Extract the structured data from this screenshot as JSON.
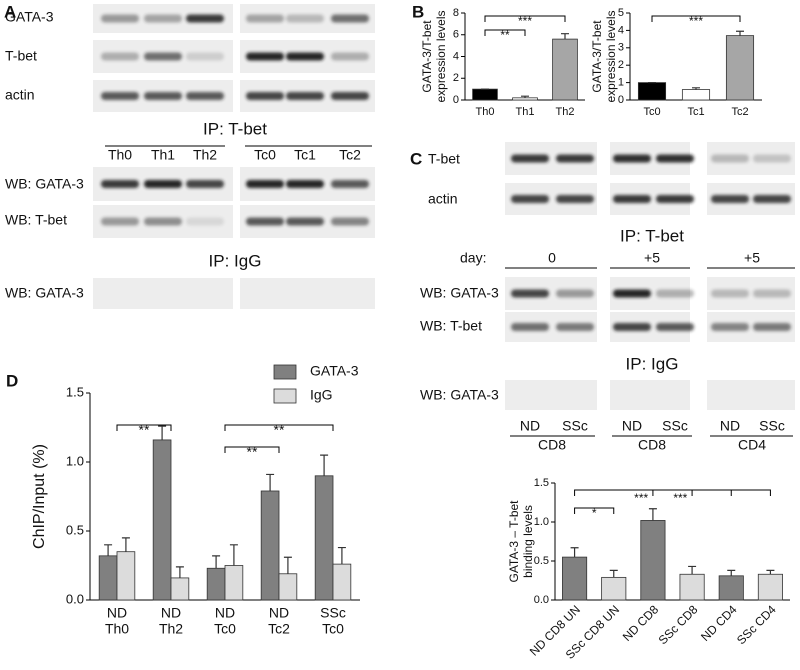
{
  "panel_labels": [
    "A",
    "B",
    "C",
    "D"
  ],
  "blot_a": {
    "rows": [
      "GATA-3",
      "T-bet",
      "actin"
    ],
    "ip_tbet": "IP: T-bet",
    "lanes": [
      "Th0",
      "Th1",
      "Th2",
      "Tc0",
      "Tc1",
      "Tc2"
    ],
    "wb_rows": [
      "WB: GATA-3",
      "WB: T-bet"
    ],
    "ip_igg": "IP: IgG",
    "igg_row": "WB: GATA-3"
  },
  "blot_c": {
    "rows": [
      "T-bet",
      "actin"
    ],
    "ip_tbet": "IP: T-bet",
    "day_label": "day:",
    "days": [
      "0",
      "+5",
      "+5"
    ],
    "wb_rows": [
      "WB: GATA-3",
      "WB: T-bet"
    ],
    "ip_igg": "IP: IgG",
    "igg_row": "WB: GATA-3",
    "lanes": [
      "ND",
      "SSc",
      "ND",
      "SSc",
      "ND",
      "SSc"
    ],
    "groups": [
      "CD8",
      "CD8",
      "CD4"
    ]
  },
  "chart_data": [
    {
      "type": "bar",
      "y_label": [
        "GATA-3/T-bet",
        "expression levels"
      ],
      "categories": [
        "Th0",
        "Th1",
        "Th2"
      ],
      "values": [
        1.0,
        0.2,
        5.6
      ],
      "errors": [
        0,
        0.15,
        0.5
      ],
      "colors": [
        "#000000",
        "#ffffff",
        "#a6a6a6"
      ],
      "ylim": [
        0,
        8
      ],
      "yticks": [
        0,
        2,
        4,
        6,
        8
      ],
      "annotations": [
        "**",
        "***"
      ]
    },
    {
      "type": "bar",
      "y_label": [
        "GATA-3/T-bet",
        "expression levels"
      ],
      "categories": [
        "Tc0",
        "Tc1",
        "Tc2"
      ],
      "values": [
        1.0,
        0.6,
        3.7
      ],
      "errors": [
        0,
        0.1,
        0.25
      ],
      "colors": [
        "#000000",
        "#ffffff",
        "#a6a6a6"
      ],
      "ylim": [
        0,
        5
      ],
      "yticks": [
        0,
        1,
        2,
        3,
        4,
        5
      ],
      "annotations": [
        "***"
      ]
    },
    {
      "type": "grouped-bar",
      "y_label": "ChIP/Input (%)",
      "categories": [
        [
          "ND",
          "Th0"
        ],
        [
          "ND",
          "Th2"
        ],
        [
          "ND",
          "Tc0"
        ],
        [
          "ND",
          "Tc2"
        ],
        [
          "SSc",
          "Tc0"
        ]
      ],
      "series": [
        {
          "name": "GATA-3",
          "color": "#808080",
          "values": [
            0.32,
            1.16,
            0.23,
            0.79,
            0.9
          ],
          "errors": [
            0.08,
            0.1,
            0.09,
            0.12,
            0.15
          ]
        },
        {
          "name": "IgG",
          "color": "#dcdcdc",
          "values": [
            0.35,
            0.16,
            0.25,
            0.19,
            0.26
          ],
          "errors": [
            0.1,
            0.08,
            0.15,
            0.12,
            0.12
          ]
        }
      ],
      "ylim": [
        0,
        1.5
      ],
      "yticks": [
        {
          "value": 0,
          "label": "0.0"
        },
        0.5,
        {
          "value": 1,
          "label": "1.0"
        },
        1.5
      ],
      "annotations": [
        "**",
        "**",
        "**"
      ]
    },
    {
      "type": "bar",
      "y_label": [
        "GATA-3 – T-bet",
        "binding levels"
      ],
      "categories": [
        "ND CD8 UN",
        "SSc CD8 UN",
        "ND CD8",
        "SSc CD8",
        "ND CD4",
        "SSc CD4"
      ],
      "values": [
        0.55,
        0.29,
        1.02,
        0.33,
        0.31,
        0.33
      ],
      "errors": [
        0.12,
        0.09,
        0.15,
        0.1,
        0.07,
        0.05
      ],
      "colors": [
        "#808080",
        "#dcdcdc",
        "#808080",
        "#dcdcdc",
        "#808080",
        "#dcdcdc"
      ],
      "ylim": [
        0,
        1.5
      ],
      "yticks": [
        {
          "value": 0,
          "label": "0.0"
        },
        0.5,
        {
          "value": 1,
          "label": "1.0"
        },
        1.5
      ],
      "annotations": [
        "*",
        "***",
        "***"
      ]
    }
  ]
}
